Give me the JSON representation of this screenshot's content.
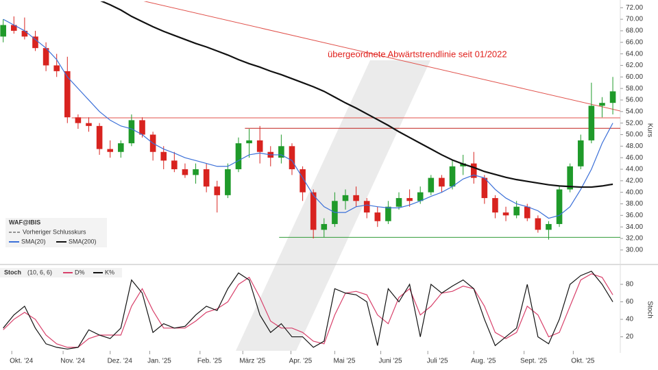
{
  "chart_data": [
    {
      "type": "candlestick",
      "symbol": "WAF@IBIS",
      "axis_label": "Kurs",
      "annotation": "übergeordnete Abwärtstrendlinie seit 01/2022",
      "x": [
        0,
        1,
        2,
        3,
        4,
        5,
        6,
        7,
        8,
        9,
        10,
        11,
        12,
        13,
        14,
        15,
        16,
        17,
        18,
        19,
        20,
        21,
        22,
        23,
        24,
        25,
        26,
        27,
        28,
        29,
        30,
        31,
        32,
        33,
        34,
        35,
        36,
        37,
        38,
        39,
        40,
        41,
        42,
        43,
        44,
        45,
        46,
        47,
        48,
        49,
        50,
        51,
        52,
        53,
        54,
        55,
        56,
        57
      ],
      "open": [
        67,
        69,
        68,
        67,
        65,
        62,
        61,
        53,
        52,
        51.5,
        47.5,
        47,
        48.5,
        52.5,
        50,
        47,
        45.5,
        44,
        43,
        44,
        41,
        39.5,
        44,
        48.5,
        49,
        47,
        46,
        48,
        44,
        40,
        33.5,
        34.5,
        38.5,
        39.5,
        38.5,
        36.5,
        35,
        37.5,
        39,
        38.5,
        40,
        42.5,
        41,
        44.5,
        45,
        42.5,
        39,
        36.5,
        36,
        37.5,
        35.5,
        33.5,
        34.5,
        40.5,
        44.5,
        49,
        55,
        55.5
      ],
      "high": [
        70,
        70.5,
        70.3,
        68,
        66,
        64,
        63.5,
        53.5,
        53,
        52,
        49,
        49,
        53.5,
        53,
        50.5,
        48,
        47,
        45,
        45,
        45,
        42,
        45,
        49.5,
        51,
        51.5,
        48,
        50,
        48.5,
        44.5,
        40.5,
        35.5,
        40,
        40.5,
        41,
        39,
        37.5,
        38.5,
        40,
        40.5,
        41,
        43,
        43,
        45.5,
        46.5,
        47,
        43,
        39.5,
        37.5,
        38.5,
        38,
        36,
        35,
        41,
        45,
        50,
        59,
        56.5,
        60
      ],
      "low": [
        66,
        67.5,
        66.5,
        64.5,
        61,
        60,
        52,
        51,
        50.5,
        46.5,
        46,
        46,
        48,
        49.5,
        45.5,
        44,
        43.5,
        42.5,
        41.5,
        40,
        36.5,
        39,
        43.5,
        46,
        45,
        44.5,
        45,
        43,
        38.5,
        32,
        32.2,
        34,
        37,
        37.5,
        35.5,
        34,
        34.5,
        37,
        37.5,
        38,
        39.5,
        40,
        40.5,
        43,
        41.5,
        38,
        35.5,
        35,
        35.5,
        35,
        33,
        31.8,
        34,
        40,
        44,
        48.5,
        53,
        53.5
      ],
      "close": [
        69,
        68,
        67,
        65,
        62,
        61,
        53,
        52,
        51.5,
        47.5,
        47,
        48.5,
        52.5,
        50,
        47,
        45.5,
        44,
        43,
        44,
        41,
        39.5,
        44,
        48.5,
        49,
        47,
        46,
        48,
        44,
        40,
        33.5,
        34.5,
        38.5,
        39.5,
        38.5,
        36.5,
        35,
        37.5,
        39,
        38.5,
        40,
        42.5,
        41,
        44.5,
        45,
        42.5,
        39,
        36.5,
        36,
        37.5,
        35.5,
        33.5,
        34.5,
        40.5,
        44.5,
        49,
        55,
        55.5,
        57.5
      ],
      "up_color": "#1f9a2a",
      "down_color": "#d8231f",
      "previous_close_label": "Vorheriger Schlusskurs",
      "series": [
        {
          "name": "SMA(20)",
          "color": "#3a6fd8",
          "values": [
            70,
            69,
            68,
            66.5,
            65,
            63,
            60,
            58,
            56,
            54,
            52.5,
            51.5,
            51,
            50,
            48.5,
            47.5,
            46.8,
            46,
            45.5,
            45,
            44.5,
            44.5,
            45.5,
            46.5,
            46.8,
            46.5,
            46.5,
            45.5,
            42.5,
            39.5,
            37.5,
            36.5,
            36.5,
            37.5,
            37.8,
            37.5,
            37.3,
            37.3,
            37.8,
            38.5,
            39.3,
            40,
            41,
            42.3,
            43,
            42.5,
            40.5,
            39,
            38,
            37.5,
            36.8,
            35.5,
            36,
            37.5,
            40.5,
            44,
            48.5,
            52
          ]
        },
        {
          "name": "SMA(200)",
          "color": "#111111",
          "values": [
            null,
            null,
            null,
            null,
            null,
            null,
            null,
            null,
            null,
            73.3,
            72.5,
            71.6,
            70.5,
            69.6,
            68.7,
            67.9,
            67.2,
            66.5,
            65.8,
            65.2,
            64.5,
            63.8,
            63,
            62.3,
            61.7,
            61,
            60.4,
            59.7,
            59,
            58.3,
            57.5,
            56.5,
            55.5,
            54.6,
            53.6,
            52.6,
            51.6,
            50.5,
            49.5,
            48.5,
            47.5,
            46.5,
            45.6,
            44.9,
            44.3,
            43.6,
            43.1,
            42.6,
            42.2,
            41.9,
            41.6,
            41.3,
            41.1,
            41,
            40.9,
            40.9,
            41.1,
            41.4
          ]
        }
      ],
      "levels": [
        {
          "value": 52.9,
          "x_start": 6.4,
          "color": "#e0504a"
        },
        {
          "value": 51.1,
          "x_start": 22.6,
          "color": "#c0201c"
        },
        {
          "value": 32.2,
          "x_start": 25.8,
          "color": "#2f9a35"
        }
      ],
      "trendline": {
        "x": [
          12.8,
          57.7
        ],
        "values": [
          73.3,
          54.1
        ],
        "color": "#e0504a"
      },
      "xlim": [
        -0.3,
        57.7
      ],
      "ylim": [
        28.2,
        73.1
      ],
      "yticks": [
        {
          "value": 30,
          "label": "30.00"
        },
        {
          "value": 32,
          "label": "32.00"
        },
        {
          "value": 34,
          "label": "34.00"
        },
        {
          "value": 36,
          "label": "36.00"
        },
        {
          "value": 38,
          "label": "38.00"
        },
        {
          "value": 40,
          "label": "40.00"
        },
        {
          "value": 42,
          "label": "42.00"
        },
        {
          "value": 44,
          "label": "44.00"
        },
        {
          "value": 46,
          "label": "46.00"
        },
        {
          "value": 48,
          "label": "48.00"
        },
        {
          "value": 50,
          "label": "50.00"
        },
        {
          "value": 52,
          "label": "52.00"
        },
        {
          "value": 54,
          "label": "54.00"
        },
        {
          "value": 56,
          "label": "56.00"
        },
        {
          "value": 58,
          "label": "58.00"
        },
        {
          "value": 60,
          "label": "60.00"
        },
        {
          "value": 62,
          "label": "62.00"
        },
        {
          "value": 64,
          "label": "64.00"
        },
        {
          "value": 66,
          "label": "66.00"
        },
        {
          "value": 68,
          "label": "68.00"
        },
        {
          "value": 70,
          "label": "70.00"
        },
        {
          "value": 72,
          "label": "72.00"
        }
      ]
    },
    {
      "type": "line",
      "title": "Stoch",
      "parameters": "(10, 6, 6)",
      "axis_label": "Stoch",
      "x": [
        0,
        1,
        2,
        3,
        4,
        5,
        6,
        7,
        8,
        9,
        10,
        11,
        12,
        13,
        14,
        15,
        16,
        17,
        18,
        19,
        20,
        21,
        22,
        23,
        24,
        25,
        26,
        27,
        28,
        29,
        30,
        31,
        32,
        33,
        34,
        35,
        36,
        37,
        38,
        39,
        40,
        41,
        42,
        43,
        44,
        45,
        46,
        47,
        48,
        49,
        50,
        51,
        52,
        53,
        54,
        55,
        56,
        57
      ],
      "series": [
        {
          "name": "D%",
          "color": "#d8406a",
          "values": [
            28,
            40,
            48,
            40,
            22,
            12,
            8,
            8,
            18,
            22,
            22,
            22,
            55,
            75,
            50,
            30,
            30,
            30,
            38,
            48,
            52,
            60,
            80,
            88,
            65,
            38,
            30,
            30,
            25,
            15,
            12,
            45,
            70,
            72,
            68,
            45,
            35,
            65,
            75,
            45,
            55,
            70,
            72,
            78,
            75,
            55,
            25,
            18,
            25,
            55,
            45,
            20,
            25,
            55,
            85,
            92,
            88,
            68
          ]
        },
        {
          "name": "K%",
          "color": "#111111",
          "values": [
            30,
            45,
            55,
            30,
            12,
            8,
            6,
            8,
            28,
            22,
            18,
            30,
            85,
            70,
            25,
            35,
            30,
            32,
            45,
            55,
            50,
            75,
            93,
            85,
            45,
            25,
            35,
            20,
            20,
            8,
            15,
            75,
            70,
            68,
            60,
            10,
            75,
            60,
            80,
            20,
            80,
            70,
            78,
            85,
            75,
            40,
            10,
            20,
            30,
            80,
            20,
            12,
            40,
            80,
            90,
            95,
            80,
            60
          ]
        }
      ],
      "xlim": [
        -0.3,
        57.7
      ],
      "ylim": [
        4,
        98
      ],
      "yticks": [
        20,
        40,
        60,
        80
      ],
      "xticks": [
        {
          "value": 1.7,
          "label": "Okt. '24"
        },
        {
          "value": 6.5,
          "label": "Nov. '24"
        },
        {
          "value": 10.9,
          "label": "Dez. '24"
        },
        {
          "value": 14.6,
          "label": "Jan. '25"
        },
        {
          "value": 19.3,
          "label": "Feb. '25"
        },
        {
          "value": 23.3,
          "label": "März '25"
        },
        {
          "value": 27.8,
          "label": "Apr. '25"
        },
        {
          "value": 31.9,
          "label": "Mai '25"
        },
        {
          "value": 36.2,
          "label": "Juni '25"
        },
        {
          "value": 40.6,
          "label": "Juli '25"
        },
        {
          "value": 44.9,
          "label": "Aug. '25"
        },
        {
          "value": 49.6,
          "label": "Sept. '25"
        },
        {
          "value": 54.2,
          "label": "Okt. '25"
        }
      ]
    }
  ]
}
